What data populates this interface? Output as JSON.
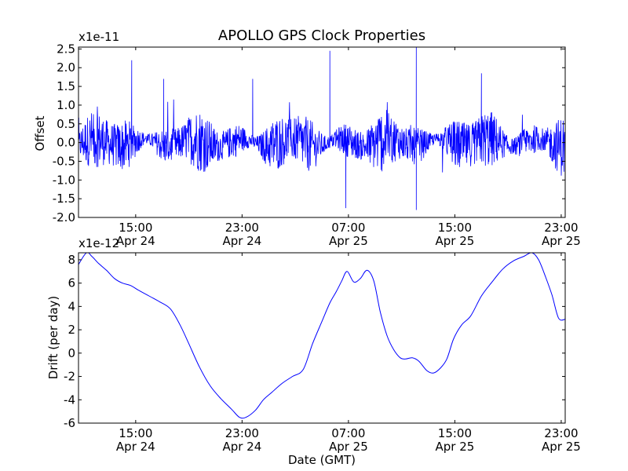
{
  "chart_data": [
    {
      "type": "line",
      "title": "APOLLO GPS Clock Properties",
      "ylabel": "Offset",
      "xlabel": "",
      "y_multiplier": "x1e-11",
      "series_color": "#0000ff",
      "x_tick_labels": [
        {
          "time": "15:00",
          "date": "Apr 24"
        },
        {
          "time": "23:00",
          "date": "Apr 24"
        },
        {
          "time": "07:00",
          "date": "Apr 25"
        },
        {
          "time": "15:00",
          "date": "Apr 25"
        },
        {
          "time": "23:00",
          "date": "Apr 25"
        }
      ],
      "xlim": [
        "Apr 24 11:00",
        "Apr 25 23:30"
      ],
      "x_tick_hours": [
        4,
        12,
        20,
        28,
        36
      ],
      "x_range_hours": [
        -0.3,
        36.3
      ],
      "ylim": [
        -2.0,
        2.55
      ],
      "y_ticks": [
        -2.0,
        -1.5,
        -1.0,
        -0.5,
        0.0,
        0.5,
        1.0,
        1.5,
        2.0,
        2.5
      ],
      "y_tick_labels": [
        "-2.0",
        "-1.5",
        "-1.0",
        "-0.5",
        "0.0",
        "0.5",
        "1.0",
        "1.5",
        "2.0",
        "2.5"
      ],
      "noisy_signal": true,
      "spikes": [
        {
          "hour": 3.7,
          "y": 2.2
        },
        {
          "hour": 6.1,
          "y": 1.7
        },
        {
          "hour": 12.8,
          "y": 1.7
        },
        {
          "hour": 18.6,
          "y": 2.45
        },
        {
          "hour": 25.1,
          "y": 2.55
        },
        {
          "hour": 25.1,
          "y": -1.8
        },
        {
          "hour": 19.8,
          "y": -1.75
        },
        {
          "hour": 30.0,
          "y": 1.85
        }
      ]
    },
    {
      "type": "line",
      "title": "",
      "ylabel": "Drift (per day)",
      "xlabel": "Date (GMT)",
      "y_multiplier": "x1e-12",
      "series_color": "#0000ff",
      "x_tick_labels": [
        {
          "time": "15:00",
          "date": "Apr 24"
        },
        {
          "time": "23:00",
          "date": "Apr 24"
        },
        {
          "time": "07:00",
          "date": "Apr 25"
        },
        {
          "time": "15:00",
          "date": "Apr 25"
        },
        {
          "time": "23:00",
          "date": "Apr 25"
        }
      ],
      "x_tick_hours": [
        4,
        12,
        20,
        28,
        36
      ],
      "x_range_hours": [
        -0.3,
        36.3
      ],
      "ylim": [
        -6,
        8.6
      ],
      "y_ticks": [
        -6,
        -4,
        -2,
        0,
        2,
        4,
        6,
        8
      ],
      "y_tick_labels": [
        "-6",
        "-4",
        "-2",
        "0",
        "2",
        "4",
        "6",
        "8"
      ],
      "x": [
        -0.3,
        0.3,
        0.7,
        1.2,
        1.8,
        2.4,
        3.0,
        3.6,
        4.2,
        5.0,
        5.8,
        6.6,
        7.3,
        8.0,
        8.8,
        9.6,
        10.4,
        11.2,
        11.8,
        12.3,
        13.0,
        13.6,
        14.2,
        15.0,
        15.8,
        16.6,
        17.3,
        18.0,
        18.6,
        19.1,
        19.5,
        19.9,
        20.4,
        20.9,
        21.4,
        21.9,
        22.4,
        22.9,
        23.4,
        23.9,
        24.3,
        24.8,
        25.3,
        25.9,
        26.4,
        26.9,
        27.4,
        27.9,
        28.5,
        29.2,
        30.0,
        30.8,
        31.6,
        32.4,
        33.2,
        33.8,
        34.3,
        34.8,
        35.3,
        35.8,
        36.3
      ],
      "values": [
        7.6,
        8.6,
        8.3,
        7.7,
        7.1,
        6.4,
        6.0,
        5.8,
        5.4,
        4.9,
        4.4,
        3.8,
        2.5,
        0.8,
        -1.2,
        -2.8,
        -3.9,
        -4.8,
        -5.5,
        -5.5,
        -4.9,
        -4.0,
        -3.4,
        -2.6,
        -2.0,
        -1.4,
        0.8,
        2.7,
        4.3,
        5.3,
        6.2,
        7.0,
        6.1,
        6.4,
        7.1,
        6.2,
        3.5,
        1.5,
        0.3,
        -0.4,
        -0.5,
        -0.4,
        -0.7,
        -1.5,
        -1.7,
        -1.3,
        -0.5,
        1.2,
        2.4,
        3.2,
        4.9,
        6.1,
        7.2,
        7.9,
        8.3,
        8.6,
        8.0,
        6.6,
        5.0,
        3.0,
        2.9
      ]
    }
  ]
}
